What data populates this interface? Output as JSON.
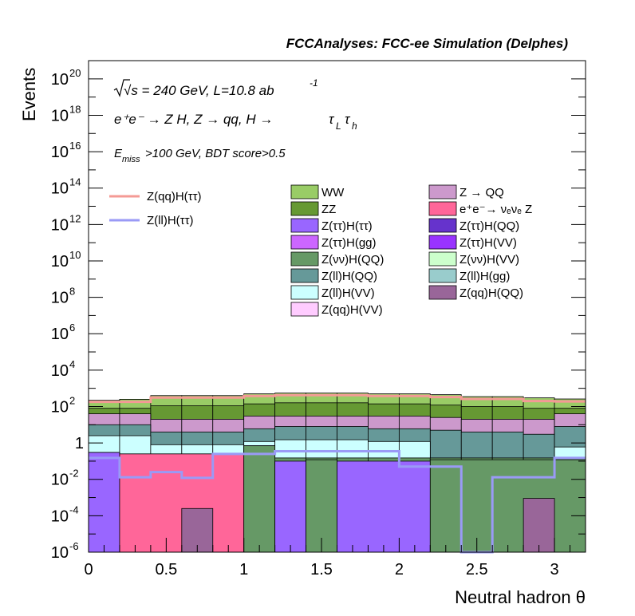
{
  "header": {
    "title": "FCCAnalyses: FCC-ee Simulation (Delphes)"
  },
  "annotations": {
    "energy_lumi": "√s = 240 GeV, L=10.8 ab",
    "lumi_exponent": "-1",
    "process_prefix": "e⁺e⁻ → Z H, Z → qq, H →",
    "process_tau_l": "τ",
    "process_sub_l": "L",
    "process_tau_h": "τ",
    "process_sub_h": "h",
    "cut_e": "E",
    "cut_sub": "miss",
    "cut_rest": ">100 GeV, BDT score>0.5"
  },
  "colors": {
    "signal_qq": "#f49a95",
    "signal_ll": "#9a9af6"
  },
  "chart_data": {
    "type": "stacked-histogram",
    "xlabel": "Neutral hadron θ",
    "ylabel": "Events",
    "xlim": [
      0,
      3.2
    ],
    "ylim": [
      1e-06,
      1e+21
    ],
    "yscale": "log",
    "bin_edges": [
      0,
      0.2,
      0.4,
      0.6,
      0.8,
      1.0,
      1.2,
      1.4,
      1.6,
      1.8,
      2.0,
      2.2,
      2.4,
      2.6,
      2.8,
      3.0,
      3.2
    ],
    "x_ticks": [
      {
        "value": 0,
        "label": "0"
      },
      {
        "value": 0.5,
        "label": "0.5"
      },
      {
        "value": 1,
        "label": "1"
      },
      {
        "value": 1.5,
        "label": "1.5"
      },
      {
        "value": 2,
        "label": "2"
      },
      {
        "value": 2.5,
        "label": "2.5"
      },
      {
        "value": 3,
        "label": "3"
      }
    ],
    "y_ticks": [
      {
        "exp": -6,
        "base": "10",
        "sup": "-6"
      },
      {
        "exp": -4,
        "base": "10",
        "sup": "-4"
      },
      {
        "exp": -2,
        "base": "10",
        "sup": "-2"
      },
      {
        "exp": 0,
        "base": "1",
        "sup": ""
      },
      {
        "exp": 2,
        "base": "10",
        "sup": "2"
      },
      {
        "exp": 4,
        "base": "10",
        "sup": "4"
      },
      {
        "exp": 6,
        "base": "10",
        "sup": "6"
      },
      {
        "exp": 8,
        "base": "10",
        "sup": "8"
      },
      {
        "exp": 10,
        "base": "10",
        "sup": "10"
      },
      {
        "exp": 12,
        "base": "10",
        "sup": "12"
      },
      {
        "exp": 14,
        "base": "10",
        "sup": "14"
      },
      {
        "exp": 16,
        "base": "10",
        "sup": "16"
      },
      {
        "exp": 18,
        "base": "10",
        "sup": "18"
      },
      {
        "exp": 20,
        "base": "10",
        "sup": "20"
      }
    ],
    "stack_boundaries": [
      {
        "name": "stack-top-ww",
        "fill": "#99cc66",
        "values": [
          220,
          250,
          400,
          400,
          400,
          500,
          550,
          550,
          550,
          500,
          500,
          450,
          350,
          350,
          300,
          260
        ]
      },
      {
        "name": "stack-top-zz",
        "fill": "#669933",
        "values": [
          80,
          80,
          110,
          110,
          110,
          140,
          160,
          160,
          160,
          140,
          140,
          120,
          100,
          100,
          80,
          80
        ]
      },
      {
        "name": "stack-top-z-qq",
        "fill": "#cc99cc",
        "values": [
          40,
          40,
          20,
          20,
          20,
          30,
          30,
          30,
          30,
          30,
          30,
          25,
          20,
          20,
          20,
          40
        ]
      },
      {
        "name": "stack-top-zllh-qq",
        "fill": "#669999",
        "values": [
          10,
          10,
          4,
          4,
          4,
          6,
          8,
          8,
          8,
          6,
          6,
          5,
          4,
          4,
          3,
          8
        ]
      },
      {
        "name": "stack-top-zllh-vv",
        "fill": "#ccffff",
        "values": [
          2.5,
          2.5,
          0.8,
          0.8,
          0.8,
          1.2,
          1.5,
          1.5,
          1.5,
          1.2,
          1.2,
          0.15,
          0.15,
          0.15,
          0.15,
          0.6
        ]
      },
      {
        "name": "stack-top-zvvh-qq",
        "fill": "#669966",
        "values": [
          0.3,
          0.25,
          0.25,
          0.25,
          0.25,
          0.7,
          0.15,
          0.15,
          0.15,
          0.15,
          0.15,
          0.15,
          0.15,
          0.15,
          0.15,
          0.15
        ]
      }
    ],
    "floor_bins": [
      {
        "fill": "#9966ff",
        "from": 0,
        "to": 0.2
      },
      {
        "fill": "#ff6699",
        "from": 0.2,
        "to": 1.0
      },
      {
        "fill": "#669966",
        "from": 1.0,
        "to": 1.2
      },
      {
        "fill": "#9966ff",
        "from": 1.2,
        "to": 1.4
      },
      {
        "fill": "#669966",
        "from": 1.4,
        "to": 1.6
      },
      {
        "fill": "#9966ff",
        "from": 1.6,
        "to": 2.2
      },
      {
        "fill": "#669966",
        "from": 2.2,
        "to": 3.2
      }
    ],
    "floor_tops": [
      {
        "from": 0,
        "to": 0.2,
        "value": 0.3
      },
      {
        "from": 0.2,
        "to": 1.0,
        "value": 0.25
      },
      {
        "from": 1.0,
        "to": 1.2,
        "value": 0.7
      },
      {
        "from": 1.2,
        "to": 1.4,
        "value": 0.1
      },
      {
        "from": 1.4,
        "to": 1.6,
        "value": 0.12
      },
      {
        "from": 1.6,
        "to": 2.2,
        "value": 0.1
      },
      {
        "from": 2.2,
        "to": 3.2,
        "value": 0.12
      }
    ],
    "small_bins": [
      {
        "name": "zqqh-qq-bin-1",
        "fill": "#996699",
        "from": 0.6,
        "to": 0.8,
        "value": 0.00025
      },
      {
        "name": "zqqh-qq-bin-2",
        "fill": "#996699",
        "from": 2.8,
        "to": 3.0,
        "value": 0.0009
      }
    ],
    "series": [
      {
        "name": "Z(qq)H(ττ)",
        "color": "#f49a95",
        "values": [
          180,
          180,
          310,
          310,
          310,
          380,
          420,
          420,
          420,
          380,
          380,
          330,
          260,
          260,
          200,
          190
        ]
      },
      {
        "name": "Z(ll)H(ττ)",
        "color": "#9a9af6",
        "values": [
          0.15,
          0.013,
          0.025,
          0.012,
          0.25,
          0.25,
          0.35,
          0.35,
          0.35,
          0.35,
          0.05,
          0.05,
          1e-06,
          0.013,
          0.013,
          0.15
        ]
      }
    ],
    "legend_lines": [
      {
        "label": "Z(qq)H(ττ)",
        "color": "#f49a95"
      },
      {
        "label": "Z(ll)H(ττ)",
        "color": "#9a9af6"
      }
    ],
    "legend_left": [
      {
        "label": "WW",
        "color": "#99cc66"
      },
      {
        "label": "ZZ",
        "color": "#669933"
      },
      {
        "label": "Z(ττ)H(ττ)",
        "color": "#9966ff"
      },
      {
        "label": "Z(ττ)H(gg)",
        "color": "#cc66ff"
      },
      {
        "label": "Z(νν)H(QQ)",
        "color": "#669966"
      },
      {
        "label": "Z(ll)H(QQ)",
        "color": "#669999"
      },
      {
        "label": "Z(ll)H(VV)",
        "color": "#ccffff"
      },
      {
        "label": "Z(qq)H(VV)",
        "color": "#ffccff"
      }
    ],
    "legend_right": [
      {
        "label": "Z → QQ",
        "color": "#cc99cc"
      },
      {
        "label": "e⁺e⁻→ νₑνₑ Z",
        "color": "#ff6699"
      },
      {
        "label": "Z(ττ)H(QQ)",
        "color": "#6633cc"
      },
      {
        "label": "Z(ττ)H(VV)",
        "color": "#9933ff"
      },
      {
        "label": "Z(νν)H(VV)",
        "color": "#ccffcc"
      },
      {
        "label": "Z(ll)H(gg)",
        "color": "#99cccc"
      },
      {
        "label": "Z(qq)H(QQ)",
        "color": "#996699"
      }
    ]
  }
}
